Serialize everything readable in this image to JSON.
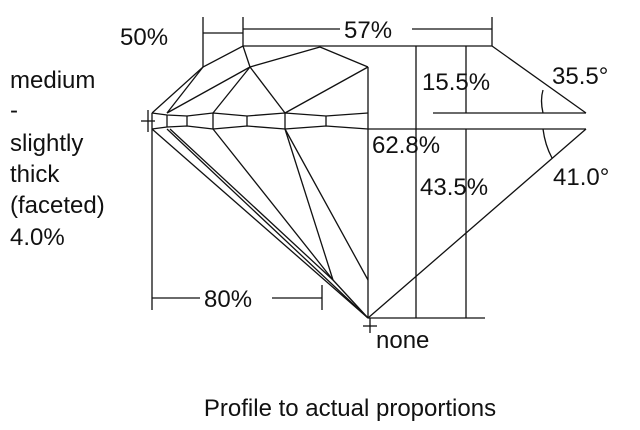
{
  "labels": {
    "crown_height_ratio": "50%",
    "table": "57%",
    "girdle": [
      "medium",
      "-",
      "slightly",
      "thick",
      "(faceted)",
      "4.0%"
    ],
    "crown_height": "15.5%",
    "crown_angle": "35.5°",
    "total_depth": "62.8%",
    "pavilion_depth": "43.5%",
    "pavilion_angle": "41.0°",
    "lower_half": "80%",
    "culet": "none",
    "caption": "Profile to actual proportions"
  }
}
